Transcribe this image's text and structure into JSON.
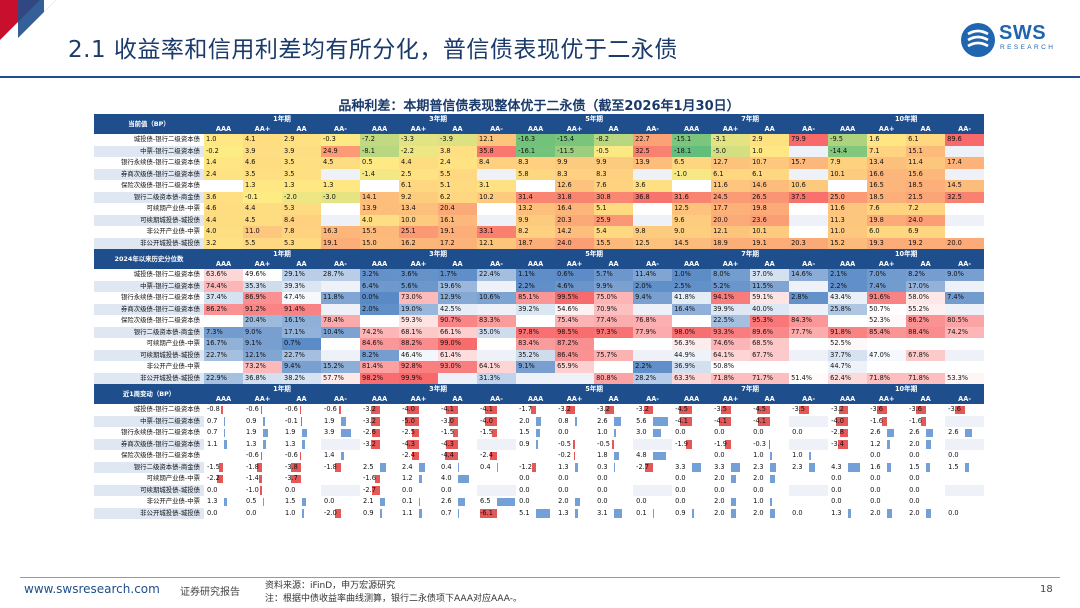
{
  "header": {
    "title": "2.1 收益率和信用利差均有所分化，普信债表现优于二永债",
    "logo_text": "SWS",
    "logo_sub": "RESEARCH"
  },
  "chart_title": "品种利差：本期普信债表现整体优于二永债（截至2026年1月30日）",
  "tenors": [
    "1年期",
    "3年期",
    "5年期",
    "7年期",
    "10年期"
  ],
  "ratings": [
    "AAA",
    "AA+",
    "AA",
    "AA-"
  ],
  "row_labels": [
    "城投债-银行二级资本债",
    "中票-银行二级资本债",
    "银行永续债-银行二级资本债",
    "券商次级债-银行二级资本债",
    "保险次级债-银行二级资本债",
    "银行二级资本债-商金债",
    "可续期产业债-中票",
    "可续期城投债-城投债",
    "非公开产业债-中票",
    "非公开城投债-城投债"
  ],
  "sections": [
    {
      "label": "当前值（BP）",
      "kind": "current",
      "rows": [
        [
          "1.0",
          "4.1",
          "2.9",
          "-0.3",
          "-7.2",
          "-3.3",
          "-3.9",
          "12.1",
          "-16.3",
          "-15.4",
          "-8.2",
          "22.7",
          "-15.1",
          "-3.1",
          "2.9",
          "79.9",
          "-9.5",
          "1.6",
          "6.1",
          "89.6"
        ],
        [
          "-0.2",
          "3.9",
          "3.9",
          "24.9",
          "-8.1",
          "-2.2",
          "3.8",
          "35.8",
          "-16.1",
          "-11.5",
          "-0.5",
          "32.5",
          "-18.1",
          "-5.0",
          "1.0",
          "",
          "-14.4",
          "7.1",
          "15.1",
          ""
        ],
        [
          "1.4",
          "4.6",
          "3.5",
          "4.5",
          "0.5",
          "4.4",
          "2.4",
          "8.4",
          "8.3",
          "9.9",
          "9.9",
          "13.9",
          "6.5",
          "12.7",
          "10.7",
          "15.7",
          "7.9",
          "13.4",
          "11.4",
          "17.4"
        ],
        [
          "2.4",
          "3.5",
          "3.5",
          "",
          "-1.4",
          "2.5",
          "5.5",
          "",
          "5.8",
          "8.3",
          "8.3",
          "",
          "-1.0",
          "6.1",
          "6.1",
          "",
          "10.1",
          "16.6",
          "15.6",
          ""
        ],
        [
          "",
          "1.3",
          "1.3",
          "1.3",
          "",
          "6.1",
          "5.1",
          "3.1",
          "",
          "12.6",
          "7.6",
          "3.6",
          "",
          "11.6",
          "14.6",
          "10.6",
          "",
          "16.5",
          "18.5",
          "14.5"
        ],
        [
          "3.6",
          "-0.1",
          "-2.0",
          "-3.0",
          "14.1",
          "9.2",
          "6.2",
          "10.2",
          "31.4",
          "31.8",
          "30.8",
          "36.8",
          "31.6",
          "24.5",
          "26.5",
          "37.5",
          "25.0",
          "18.5",
          "21.5",
          "32.5"
        ],
        [
          "4.6",
          "4.4",
          "5.3",
          "",
          "13.9",
          "13.4",
          "20.4",
          "",
          "13.2",
          "16.4",
          "5.1",
          "",
          "12.5",
          "17.7",
          "19.8",
          "",
          "11.6",
          "7.6",
          "7.2",
          ""
        ],
        [
          "4.4",
          "4.5",
          "8.4",
          "",
          "4.0",
          "10.0",
          "16.1",
          "",
          "9.9",
          "20.3",
          "25.9",
          "",
          "9.6",
          "20.0",
          "23.6",
          "",
          "11.3",
          "19.8",
          "24.0",
          ""
        ],
        [
          "4.0",
          "11.0",
          "7.8",
          "16.3",
          "15.5",
          "25.1",
          "19.1",
          "33.1",
          "8.2",
          "14.2",
          "5.4",
          "9.8",
          "9.0",
          "12.1",
          "10.1",
          "",
          "11.0",
          "6.0",
          "6.9",
          ""
        ],
        [
          "3.2",
          "5.5",
          "5.3",
          "19.1",
          "15.0",
          "16.2",
          "17.2",
          "12.1",
          "18.7",
          "24.0",
          "15.5",
          "12.5",
          "14.5",
          "18.9",
          "19.1",
          "20.3",
          "15.2",
          "19.3",
          "19.2",
          "20.0"
        ]
      ]
    },
    {
      "label": "2024年以来历史分位数",
      "kind": "pct",
      "rows": [
        [
          "63.6%",
          "49.6%",
          "29.1%",
          "28.7%",
          "3.2%",
          "3.6%",
          "1.7%",
          "22.4%",
          "1.1%",
          "0.6%",
          "5.7%",
          "11.4%",
          "1.0%",
          "8.0%",
          "37.0%",
          "14.6%",
          "2.1%",
          "7.0%",
          "8.2%",
          "9.0%"
        ],
        [
          "74.4%",
          "35.3%",
          "39.3%",
          "",
          "6.4%",
          "5.6%",
          "19.6%",
          "",
          "2.2%",
          "4.6%",
          "9.9%",
          "2.0%",
          "2.5%",
          "5.2%",
          "11.5%",
          "",
          "2.2%",
          "7.4%",
          "17.0%",
          ""
        ],
        [
          "37.4%",
          "86.9%",
          "47.4%",
          "11.8%",
          "0.0%",
          "73.0%",
          "12.9%",
          "10.6%",
          "85.1%",
          "99.5%",
          "75.0%",
          "9.4%",
          "41.8%",
          "94.1%",
          "59.1%",
          "2.8%",
          "43.4%",
          "91.6%",
          "58.0%",
          "7.4%"
        ],
        [
          "86.2%",
          "91.2%",
          "91.4%",
          "",
          "2.0%",
          "19.0%",
          "42.5%",
          "",
          "39.2%",
          "54.6%",
          "70.9%",
          "",
          "16.4%",
          "39.9%",
          "40.0%",
          "",
          "25.8%",
          "50.7%",
          "55.2%",
          ""
        ],
        [
          "",
          "20.4%",
          "16.1%",
          "78.4%",
          "",
          "59.3%",
          "90.7%",
          "83.3%",
          "",
          "75.4%",
          "77.4%",
          "76.8%",
          "",
          "22.5%",
          "95.3%",
          "84.3%",
          "",
          "52.3%",
          "86.2%",
          "80.5%"
        ],
        [
          "7.3%",
          "9.0%",
          "17.1%",
          "10.4%",
          "74.2%",
          "68.1%",
          "66.1%",
          "35.0%",
          "97.8%",
          "98.5%",
          "97.3%",
          "77.9%",
          "98.0%",
          "93.3%",
          "89.6%",
          "77.7%",
          "91.8%",
          "85.4%",
          "88.4%",
          "74.2%"
        ],
        [
          "16.7%",
          "9.1%",
          "0.7%",
          "",
          "84.6%",
          "88.2%",
          "99.0%",
          "",
          "83.4%",
          "87.2%",
          "",
          "",
          "56.3%",
          "74.6%",
          "68.5%",
          "",
          "52.5%",
          "",
          "",
          ""
        ],
        [
          "22.7%",
          "12.1%",
          "22.7%",
          "",
          "8.2%",
          "46.4%",
          "61.4%",
          "",
          "35.2%",
          "86.4%",
          "75.7%",
          "",
          "44.9%",
          "64.1%",
          "67.7%",
          "",
          "37.7%",
          "47.0%",
          "67.8%",
          ""
        ],
        [
          "",
          "73.2%",
          "9.4%",
          "15.2%",
          "81.4%",
          "92.8%",
          "93.0%",
          "64.1%",
          "9.1%",
          "65.9%",
          "",
          "2.2%",
          "36.9%",
          "50.8%",
          "",
          "",
          "44.7%",
          "",
          "",
          ""
        ],
        [
          "22.9%",
          "36.8%",
          "38.2%",
          "57.7%",
          "98.2%",
          "99.9%",
          "",
          "31.3%",
          "",
          "",
          "80.8%",
          "28.2%",
          "63.3%",
          "71.8%",
          "71.7%",
          "51.4%",
          "62.4%",
          "71.8%",
          "71.8%",
          "53.3%"
        ]
      ]
    },
    {
      "label": "近1周变动（BP）",
      "kind": "chg",
      "rows": [
        [
          "-0.8",
          "-0.6",
          "-0.6",
          "-0.6",
          "-3.2",
          "-4.0",
          "-4.1",
          "-4.1",
          "-1.7",
          "-3.2",
          "-3.2",
          "-3.2",
          "-4.5",
          "-3.5",
          "-4.5",
          "-3.5",
          "-3.2",
          "-3.6",
          "-3.6",
          "-3.6"
        ],
        [
          "0.7",
          "0.9",
          "-0.1",
          "1.9",
          "-3.2",
          "-5.0",
          "-3.0",
          "-4.0",
          "2.0",
          "0.8",
          "2.6",
          "5.6",
          "-4.1",
          "-4.1",
          "-4.1",
          "",
          "-4.0",
          "-1.6",
          "-1.6",
          ""
        ],
        [
          "0.7",
          "1.9",
          "1.9",
          "3.9",
          "-2.6",
          "-2.5",
          "-1.5",
          "-1.5",
          "1.5",
          "0.0",
          "1.0",
          "3.0",
          "0.0",
          "0.0",
          "0.0",
          "0.0",
          "-2.8",
          "2.6",
          "2.6",
          "2.6"
        ],
        [
          "1.1",
          "1.3",
          "1.3",
          "",
          "-3.2",
          "-4.3",
          "-4.3",
          "",
          "0.9",
          "-0.5",
          "-0.5",
          "",
          "-1.9",
          "-1.9",
          "-0.3",
          "",
          "-3.4",
          "1.2",
          "2.0",
          ""
        ],
        [
          "",
          "-0.6",
          "-0.6",
          "1.4",
          "",
          "-2.4",
          "-4.4",
          "-2.4",
          "",
          "-0.2",
          "1.8",
          "4.8",
          "",
          "0.0",
          "1.0",
          "1.0",
          "",
          "0.0",
          "0.0",
          "0.0"
        ],
        [
          "-1.5",
          "-1.8",
          "-3.8",
          "-1.8",
          "2.5",
          "2.4",
          "0.4",
          "0.4",
          "-1.2",
          "1.3",
          "0.3",
          "-2.7",
          "3.3",
          "3.3",
          "2.3",
          "2.3",
          "4.3",
          "1.6",
          "1.5",
          "1.5"
        ],
        [
          "-2.2",
          "-1.4",
          "-3.7",
          "",
          "-1.6",
          "1.2",
          "4.0",
          "",
          "0.0",
          "0.0",
          "0.0",
          "",
          "0.0",
          "2.0",
          "2.0",
          "",
          "0.0",
          "0.0",
          "0.0",
          ""
        ],
        [
          "0.0",
          "-1.0",
          "0.0",
          "",
          "-2.7",
          "0.0",
          "0.0",
          "",
          "0.0",
          "0.0",
          "0.0",
          "",
          "0.0",
          "0.0",
          "0.0",
          "",
          "0.0",
          "0.0",
          "0.0",
          ""
        ],
        [
          "1.3",
          "0.5",
          "1.5",
          "0.0",
          "2.1",
          "0.1",
          "2.6",
          "6.5",
          "0.0",
          "2.0",
          "0.0",
          "0.0",
          "0.0",
          "2.0",
          "1.0",
          "",
          "0.0",
          "0.0",
          "0.0",
          ""
        ],
        [
          "0.0",
          "0.0",
          "1.0",
          "-2.0",
          "0.9",
          "1.1",
          "0.7",
          "-6.1",
          "5.1",
          "1.3",
          "3.1",
          "0.1",
          "0.9",
          "2.0",
          "2.0",
          "0.0",
          "1.3",
          "2.0",
          "2.0",
          "0.0"
        ]
      ]
    }
  ],
  "footer": {
    "url": "www.swsresearch.com",
    "dept": "证券研究报告",
    "source": "资料来源：iFinD，申万宏源研究",
    "note": "注：根据中债收益率曲线测算，银行二永债项下AAA对应AAA-。",
    "page": "18"
  },
  "colors": {
    "brand": "#1f4e8c",
    "red": "#e03b3b",
    "blue": "#5b8fd0",
    "green": "#63be7b",
    "yellow": "#ffeb84"
  }
}
